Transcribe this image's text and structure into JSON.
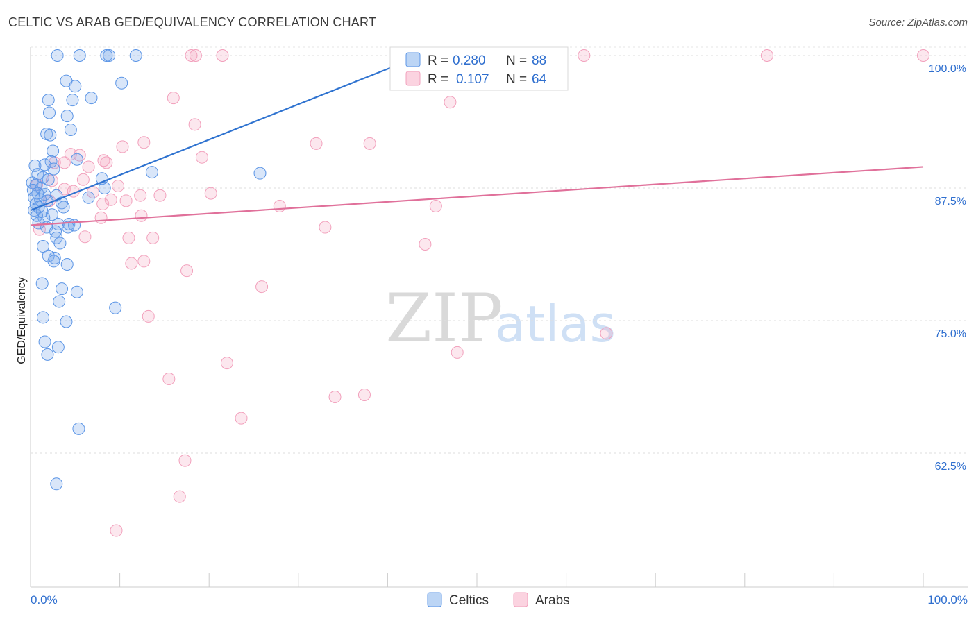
{
  "header": {
    "title": "CELTIC VS ARAB GED/EQUIVALENCY CORRELATION CHART",
    "source": "Source: ZipAtlas.com"
  },
  "watermark": {
    "zip": "ZIP",
    "atlas": "atlas"
  },
  "chart_data": {
    "type": "scatter",
    "ylabel": "GED/Equivalency",
    "xlim": [
      0,
      100
    ],
    "ylim": [
      50.5,
      101.5
    ],
    "x_tick_labels": [
      "0.0%",
      "100.0%"
    ],
    "y_ticks": [
      62.5,
      75.0,
      87.5,
      100.0
    ],
    "y_tick_labels": [
      "62.5%",
      "75.0%",
      "87.5%",
      "100.0%"
    ],
    "grid": "horizontal dashed",
    "legend_position": "top-center",
    "colors": {
      "celtics": "#5b95e6",
      "celtics_line": "#2f73d0",
      "arabs": "#f2a0bc",
      "arabs_line": "#e0709a",
      "label": "#2f6fcf"
    },
    "stats": [
      {
        "series": "Celtics",
        "r_label": "R =",
        "r": "0.280",
        "n_label": "N =",
        "n": "88"
      },
      {
        "series": "Arabs",
        "r_label": "R =",
        "r": "0.107",
        "n_label": "N =",
        "n": "64"
      }
    ],
    "series": [
      {
        "name": "Celtics",
        "trend": {
          "x": [
            0,
            45
          ],
          "y": [
            85.4,
            100.4
          ]
        },
        "points": [
          [
            3.0,
            100
          ],
          [
            5.5,
            100
          ],
          [
            8.5,
            100
          ],
          [
            8.8,
            100
          ],
          [
            11.8,
            100
          ],
          [
            4.0,
            97.6
          ],
          [
            5.0,
            97.1
          ],
          [
            10.2,
            97.4
          ],
          [
            2.0,
            95.8
          ],
          [
            4.7,
            95.8
          ],
          [
            6.8,
            96.0
          ],
          [
            2.1,
            94.6
          ],
          [
            4.1,
            94.3
          ],
          [
            4.5,
            93.0
          ],
          [
            1.8,
            92.6
          ],
          [
            2.2,
            92.5
          ],
          [
            2.5,
            91.0
          ],
          [
            5.2,
            90.2
          ],
          [
            2.3,
            90.0
          ],
          [
            1.6,
            89.7
          ],
          [
            2.6,
            89.3
          ],
          [
            13.6,
            89.0
          ],
          [
            25.7,
            88.9
          ],
          [
            0.5,
            89.6
          ],
          [
            0.8,
            88.8
          ],
          [
            1.4,
            88.5
          ],
          [
            2.0,
            88.3
          ],
          [
            0.2,
            88.0
          ],
          [
            0.6,
            87.8
          ],
          [
            1.2,
            87.5
          ],
          [
            0.3,
            87.3
          ],
          [
            0.8,
            87.0
          ],
          [
            1.6,
            86.9
          ],
          [
            2.9,
            86.8
          ],
          [
            0.4,
            86.6
          ],
          [
            1.1,
            86.4
          ],
          [
            1.9,
            86.3
          ],
          [
            0.6,
            86.0
          ],
          [
            3.5,
            86.1
          ],
          [
            0.9,
            85.7
          ],
          [
            3.7,
            85.7
          ],
          [
            0.4,
            85.4
          ],
          [
            1.3,
            85.3
          ],
          [
            2.4,
            85.0
          ],
          [
            0.7,
            84.9
          ],
          [
            1.5,
            84.7
          ],
          [
            8.3,
            87.5
          ],
          [
            8.0,
            88.4
          ],
          [
            6.5,
            86.6
          ],
          [
            0.9,
            84.2
          ],
          [
            1.8,
            83.8
          ],
          [
            2.8,
            83.4
          ],
          [
            3.1,
            84.1
          ],
          [
            4.3,
            84.1
          ],
          [
            4.9,
            84.0
          ],
          [
            4.2,
            83.8
          ],
          [
            2.9,
            82.8
          ],
          [
            3.3,
            82.3
          ],
          [
            1.4,
            82.0
          ],
          [
            2.0,
            81.1
          ],
          [
            2.7,
            80.9
          ],
          [
            2.6,
            80.6
          ],
          [
            4.1,
            80.3
          ],
          [
            1.3,
            78.5
          ],
          [
            3.5,
            78.0
          ],
          [
            5.2,
            77.7
          ],
          [
            3.2,
            76.8
          ],
          [
            9.5,
            76.2
          ],
          [
            1.4,
            75.3
          ],
          [
            4.0,
            74.9
          ],
          [
            1.6,
            73.0
          ],
          [
            3.1,
            72.5
          ],
          [
            1.9,
            71.8
          ],
          [
            5.4,
            64.8
          ],
          [
            2.9,
            59.6
          ]
        ]
      },
      {
        "name": "Arabs",
        "trend": {
          "x": [
            0,
            100
          ],
          "y": [
            84.0,
            89.5
          ]
        },
        "points": [
          [
            18.0,
            100
          ],
          [
            18.5,
            100
          ],
          [
            21.5,
            100
          ],
          [
            41.0,
            100
          ],
          [
            62.0,
            100
          ],
          [
            82.5,
            100
          ],
          [
            100,
            100
          ],
          [
            16.0,
            96.0
          ],
          [
            47.0,
            95.6
          ],
          [
            18.4,
            93.5
          ],
          [
            12.7,
            91.8
          ],
          [
            10.3,
            91.4
          ],
          [
            32.0,
            91.7
          ],
          [
            38.0,
            91.7
          ],
          [
            4.5,
            90.7
          ],
          [
            5.5,
            90.6
          ],
          [
            19.2,
            90.4
          ],
          [
            8.2,
            90.1
          ],
          [
            8.5,
            89.9
          ],
          [
            3.8,
            89.9
          ],
          [
            2.7,
            89.9
          ],
          [
            6.5,
            89.5
          ],
          [
            5.9,
            88.3
          ],
          [
            2.4,
            88.2
          ],
          [
            0.7,
            87.8
          ],
          [
            9.8,
            87.7
          ],
          [
            3.8,
            87.4
          ],
          [
            4.8,
            87.2
          ],
          [
            7.0,
            87.1
          ],
          [
            20.2,
            87.0
          ],
          [
            9.0,
            86.4
          ],
          [
            10.7,
            86.3
          ],
          [
            12.3,
            86.8
          ],
          [
            14.5,
            86.8
          ],
          [
            2.1,
            86.3
          ],
          [
            8.1,
            86.0
          ],
          [
            27.9,
            85.8
          ],
          [
            45.4,
            85.8
          ],
          [
            12.4,
            84.9
          ],
          [
            7.9,
            84.7
          ],
          [
            33.0,
            83.8
          ],
          [
            6.1,
            82.9
          ],
          [
            11.0,
            82.8
          ],
          [
            13.7,
            82.8
          ],
          [
            44.2,
            82.2
          ],
          [
            1.0,
            83.6
          ],
          [
            11.3,
            80.4
          ],
          [
            12.7,
            80.6
          ],
          [
            17.5,
            79.7
          ],
          [
            25.9,
            78.2
          ],
          [
            13.2,
            75.4
          ],
          [
            64.5,
            73.8
          ],
          [
            47.8,
            72.0
          ],
          [
            22.0,
            71.0
          ],
          [
            15.5,
            69.5
          ],
          [
            34.1,
            67.8
          ],
          [
            37.4,
            68.0
          ],
          [
            23.6,
            65.8
          ],
          [
            17.3,
            61.8
          ],
          [
            16.7,
            58.4
          ],
          [
            9.6,
            55.2
          ]
        ]
      }
    ]
  },
  "bottom_legend": [
    {
      "label": "Celtics"
    },
    {
      "label": "Arabs"
    }
  ]
}
